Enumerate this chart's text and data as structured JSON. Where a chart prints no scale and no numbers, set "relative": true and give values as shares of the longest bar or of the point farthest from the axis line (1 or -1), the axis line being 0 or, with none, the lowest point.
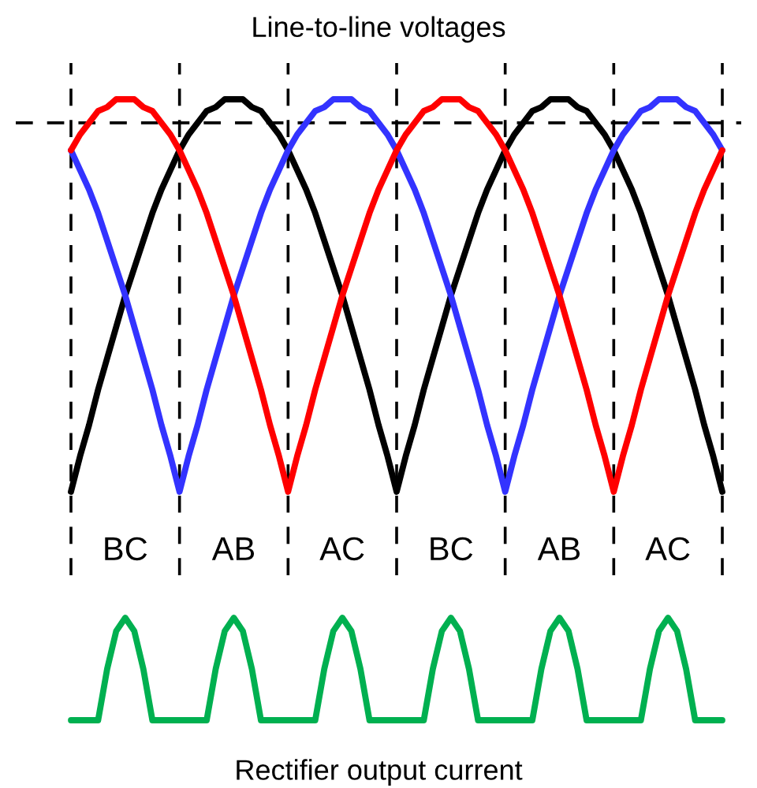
{
  "chart_data": [
    {
      "type": "line",
      "title": "Line-to-line voltages",
      "relative": true,
      "grid": "x",
      "line_style": "solid",
      "marker": "none",
      "categories": [
        null,
        null,
        null,
        null,
        null,
        null,
        null,
        null,
        null,
        null,
        null,
        null,
        null,
        null,
        null,
        null,
        null,
        null,
        null,
        null,
        null,
        null,
        null,
        null,
        null,
        null,
        null,
        null,
        null,
        null,
        null,
        null,
        null,
        null,
        null,
        null,
        null,
        null,
        null,
        null,
        null,
        null,
        null,
        null,
        null,
        null,
        null,
        null,
        null,
        null,
        null,
        null,
        null,
        null,
        null,
        null,
        null,
        null,
        null,
        null,
        null,
        null,
        null,
        null,
        null,
        null,
        null,
        null,
        null,
        null,
        null,
        null,
        null
      ],
      "series": [
        {
          "color": "#000000",
          "values": [
            0,
            0.09,
            0.17,
            0.26,
            0.34,
            0.42,
            0.5,
            0.57,
            0.64,
            0.71,
            0.77,
            0.82,
            0.87,
            0.91,
            0.94,
            0.97,
            0.98,
            1,
            1,
            1,
            0.98,
            0.97,
            0.94,
            0.91,
            0.87,
            0.82,
            0.77,
            0.71,
            0.64,
            0.57,
            0.5,
            0.42,
            0.34,
            0.26,
            0.17,
            0.09,
            0,
            0.09,
            0.17,
            0.26,
            0.34,
            0.42,
            0.5,
            0.57,
            0.64,
            0.71,
            0.77,
            0.82,
            0.87,
            0.91,
            0.94,
            0.97,
            0.98,
            1,
            1,
            1,
            0.98,
            0.97,
            0.94,
            0.91,
            0.87,
            0.82,
            0.77,
            0.71,
            0.64,
            0.57,
            0.5,
            0.42,
            0.34,
            0.26,
            0.17,
            0.09,
            0
          ]
        },
        {
          "color": "#3333ff",
          "values": [
            0.87,
            0.82,
            0.77,
            0.71,
            0.64,
            0.57,
            0.5,
            0.42,
            0.34,
            0.26,
            0.17,
            0.09,
            0,
            0.09,
            0.17,
            0.26,
            0.34,
            0.42,
            0.5,
            0.57,
            0.64,
            0.71,
            0.77,
            0.82,
            0.87,
            0.91,
            0.94,
            0.97,
            0.98,
            1,
            1,
            1,
            0.98,
            0.97,
            0.94,
            0.91,
            0.87,
            0.82,
            0.77,
            0.71,
            0.64,
            0.57,
            0.5,
            0.42,
            0.34,
            0.26,
            0.17,
            0.09,
            0,
            0.09,
            0.17,
            0.26,
            0.34,
            0.42,
            0.5,
            0.57,
            0.64,
            0.71,
            0.77,
            0.82,
            0.87,
            0.91,
            0.94,
            0.97,
            0.98,
            1,
            1,
            1,
            0.98,
            0.97,
            0.94,
            0.91,
            0.87
          ]
        },
        {
          "color": "#ff0000",
          "values": [
            0.87,
            0.91,
            0.94,
            0.97,
            0.98,
            1,
            1,
            1,
            0.98,
            0.97,
            0.94,
            0.91,
            0.87,
            0.82,
            0.77,
            0.71,
            0.64,
            0.57,
            0.5,
            0.42,
            0.34,
            0.26,
            0.17,
            0.09,
            0,
            0.09,
            0.17,
            0.26,
            0.34,
            0.42,
            0.5,
            0.57,
            0.64,
            0.71,
            0.77,
            0.82,
            0.87,
            0.91,
            0.94,
            0.97,
            0.98,
            1,
            1,
            1,
            0.98,
            0.97,
            0.94,
            0.91,
            0.87,
            0.82,
            0.77,
            0.71,
            0.64,
            0.57,
            0.5,
            0.42,
            0.34,
            0.26,
            0.17,
            0.09,
            0,
            0.09,
            0.17,
            0.26,
            0.34,
            0.42,
            0.5,
            0.57,
            0.64,
            0.71,
            0.77,
            0.82,
            0.87
          ]
        }
      ],
      "ref_lines": [
        {
          "axis": "y",
          "value": 0.94,
          "color": "#000000",
          "line_style": "dashed"
        }
      ],
      "annotations": [
        "BC",
        "AB",
        "AC",
        "BC",
        "AB",
        "AC"
      ]
    },
    {
      "type": "line",
      "xlabel": "Rectifier output current",
      "relative": true,
      "line_style": "solid",
      "marker": "none",
      "categories": [
        null,
        null,
        null,
        null,
        null,
        null,
        null,
        null,
        null,
        null,
        null,
        null,
        null,
        null,
        null,
        null,
        null,
        null,
        null,
        null,
        null,
        null,
        null,
        null,
        null,
        null,
        null,
        null,
        null,
        null,
        null,
        null,
        null,
        null,
        null,
        null,
        null,
        null,
        null,
        null,
        null,
        null,
        null,
        null,
        null,
        null,
        null,
        null,
        null,
        null,
        null,
        null,
        null,
        null,
        null,
        null,
        null,
        null,
        null,
        null,
        null,
        null,
        null,
        null,
        null,
        null,
        null,
        null,
        null,
        null,
        null,
        null,
        null
      ],
      "series": [
        {
          "color": "#00b050",
          "values": [
            0,
            0,
            0,
            0,
            0.5,
            0.87,
            1,
            0.87,
            0.5,
            0,
            0,
            0,
            0,
            0,
            0,
            0,
            0.5,
            0.87,
            1,
            0.87,
            0.5,
            0,
            0,
            0,
            0,
            0,
            0,
            0,
            0.5,
            0.87,
            1,
            0.87,
            0.5,
            0,
            0,
            0,
            0,
            0,
            0,
            0,
            0.5,
            0.87,
            1,
            0.87,
            0.5,
            0,
            0,
            0,
            0,
            0,
            0,
            0,
            0.5,
            0.87,
            1,
            0.87,
            0.5,
            0,
            0,
            0,
            0,
            0,
            0,
            0,
            0.5,
            0.87,
            1,
            0.87,
            0.5,
            0,
            0,
            0,
            0
          ]
        }
      ]
    }
  ]
}
